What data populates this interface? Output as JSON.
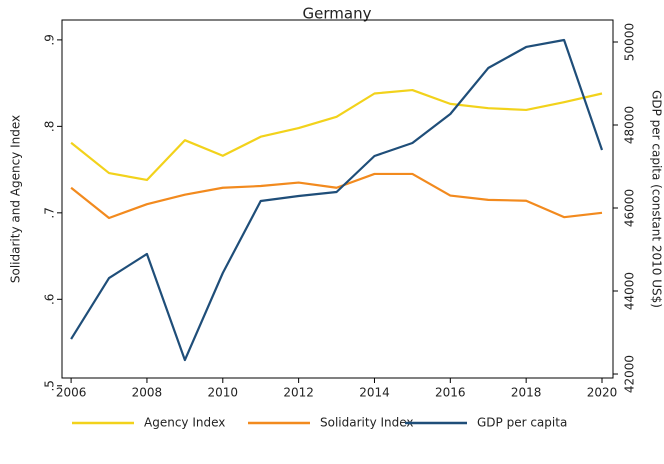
{
  "chart_data": {
    "type": "line",
    "title": "Germany",
    "x": [
      2006,
      2007,
      2008,
      2009,
      2010,
      2011,
      2012,
      2013,
      2014,
      2015,
      2016,
      2017,
      2018,
      2019,
      2020
    ],
    "xlim": [
      2005.76,
      2020.29
    ],
    "xticks": [
      2006,
      2008,
      2010,
      2012,
      2014,
      2016,
      2018,
      2020
    ],
    "y_label": "Solidarity and Agency Index",
    "y2_label": "GDP per capita (constant 2010 US$)",
    "ylim": [
      0.509,
      0.923
    ],
    "yticks": [
      {
        "value": 0.5,
        "label": ".5"
      },
      {
        "value": 0.6,
        "label": ".6"
      },
      {
        "value": 0.7,
        "label": ".7"
      },
      {
        "value": 0.8,
        "label": ".8"
      },
      {
        "value": 0.9,
        "label": ".9"
      }
    ],
    "y2lim": [
      41904,
      50530
    ],
    "y2ticks": [
      42000,
      44000,
      46000,
      48000,
      50000
    ],
    "legend": "bottom",
    "series": [
      {
        "name": "Agency Index",
        "color": "#f2d21b",
        "values": [
          0.781,
          0.746,
          0.738,
          0.784,
          0.766,
          0.788,
          0.798,
          0.811,
          0.838,
          0.842,
          0.826,
          0.821,
          0.819,
          0.828,
          0.838
        ]
      },
      {
        "name": "Solidarity Index",
        "color": "#f28a1e",
        "values": [
          0.729,
          0.694,
          0.71,
          0.721,
          0.729,
          0.731,
          0.735,
          0.729,
          0.745,
          0.745,
          0.72,
          0.715,
          0.714,
          0.695,
          0.7
        ]
      },
      {
        "name": "GDP per capita",
        "color": "#1f4e79",
        "axis": "y2",
        "values": [
          42843,
          44313,
          44892,
          42337,
          44434,
          46169,
          46289,
          46386,
          47253,
          47566,
          48265,
          49373,
          49880,
          50048,
          47398
        ]
      }
    ]
  }
}
